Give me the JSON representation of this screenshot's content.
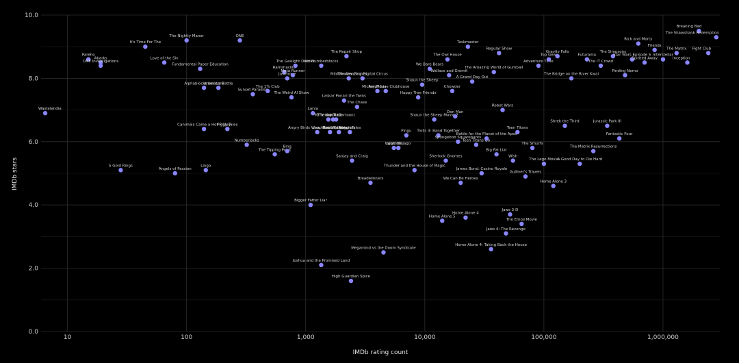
{
  "chart_data": {
    "type": "scatter",
    "xlabel": "IMDb rating count",
    "ylabel": "IMDb stars",
    "x_scale": "log",
    "xlim": [
      6,
      3000000
    ],
    "ylim": [
      0,
      10
    ],
    "grid": true,
    "x_ticks": [
      {
        "value": 10,
        "label": "10"
      },
      {
        "value": 100,
        "label": "100"
      },
      {
        "value": 1000,
        "label": "1,000"
      },
      {
        "value": 10000,
        "label": "10,000"
      },
      {
        "value": 100000,
        "label": "100,000"
      },
      {
        "value": 1000000,
        "label": "1,000,000"
      }
    ],
    "y_ticks": [
      {
        "value": 0,
        "label": "0.0"
      },
      {
        "value": 2,
        "label": "2.0"
      },
      {
        "value": 4,
        "label": "4.0"
      },
      {
        "value": 6,
        "label": "6.0"
      },
      {
        "value": 8,
        "label": "8.0"
      },
      {
        "value": 10,
        "label": "10.0"
      }
    ],
    "point_color": "#8a86ff",
    "points": [
      {
        "x": 6.5,
        "y": 6.9,
        "label": "Wastelandia"
      },
      {
        "x": 15,
        "y": 8.6,
        "label": "Pareho"
      },
      {
        "x": 19,
        "y": 8.5,
        "label": "Abarks"
      },
      {
        "x": 19,
        "y": 8.4,
        "label": "ONE Investigations"
      },
      {
        "x": 28,
        "y": 5.1,
        "label": "5 Gold Rings"
      },
      {
        "x": 45,
        "y": 9.0,
        "label": "It's Time For The"
      },
      {
        "x": 65,
        "y": 8.5,
        "label": "Love of the Sin"
      },
      {
        "x": 80,
        "y": 5.0,
        "label": "Angels of Passion"
      },
      {
        "x": 100,
        "y": 9.2,
        "label": "The Nightly Manor"
      },
      {
        "x": 130,
        "y": 8.3,
        "label": "Fundamental Paper Education"
      },
      {
        "x": 140,
        "y": 7.7,
        "label": "Alphablocks ber Lore"
      },
      {
        "x": 140,
        "y": 6.4,
        "label": "Canimals Came a Hot Friday"
      },
      {
        "x": 145,
        "y": 5.1,
        "label": "Lingo"
      },
      {
        "x": 185,
        "y": 7.7,
        "label": "Animatic Battle"
      },
      {
        "x": 220,
        "y": 6.4,
        "label": "Piggy Tales"
      },
      {
        "x": 280,
        "y": 9.2,
        "label": "ONE"
      },
      {
        "x": 320,
        "y": 5.9,
        "label": "Numberjacks"
      },
      {
        "x": 360,
        "y": 7.5,
        "label": "Sunset Paradise"
      },
      {
        "x": 480,
        "y": 7.6,
        "label": "The 1% Club"
      },
      {
        "x": 550,
        "y": 5.6,
        "label": "The Tipping Point"
      },
      {
        "x": 660,
        "y": 8.2,
        "label": "Ramshackle"
      },
      {
        "x": 700,
        "y": 5.7,
        "label": "Bing"
      },
      {
        "x": 700,
        "y": 8.0,
        "label": "Justmove"
      },
      {
        "x": 760,
        "y": 7.4,
        "label": "The Weird Al Show"
      },
      {
        "x": 780,
        "y": 8.1,
        "label": "Meta Runner"
      },
      {
        "x": 820,
        "y": 8.4,
        "label": "The Gaslight District"
      },
      {
        "x": 1100,
        "y": 4.0,
        "label": "Bigger Fatter Liar"
      },
      {
        "x": 1150,
        "y": 6.9,
        "label": "Larva"
      },
      {
        "x": 1250,
        "y": 6.3,
        "label": "Angry Birds Wow Wow Wubbzy"
      },
      {
        "x": 1350,
        "y": 2.1,
        "label": "Joshua and the Promised Land"
      },
      {
        "x": 1350,
        "y": 8.4,
        "label": "Kiri Numberblocks"
      },
      {
        "x": 1550,
        "y": 6.7,
        "label": "M/Timmy Time"
      },
      {
        "x": 1600,
        "y": 6.3,
        "label": "Leap Nexo Knights"
      },
      {
        "x": 1700,
        "y": 6.7,
        "label": "Nokotan"
      },
      {
        "x": 1800,
        "y": 6.7,
        "label": "The Lorax (Cartoon)"
      },
      {
        "x": 1900,
        "y": 6.3,
        "label": "Rabbids Invasion"
      },
      {
        "x": 2100,
        "y": 7.3,
        "label": "Laskar Ponari the Twins"
      },
      {
        "x": 2200,
        "y": 8.7,
        "label": "The Repair Shop"
      },
      {
        "x": 2300,
        "y": 8.0,
        "label": "Milo Murder Drones"
      },
      {
        "x": 2350,
        "y": 6.3,
        "label": "VeggieTales"
      },
      {
        "x": 2400,
        "y": 1.6,
        "label": "High Guardian Spice"
      },
      {
        "x": 2450,
        "y": 5.4,
        "label": "Sanjay and Craig"
      },
      {
        "x": 2700,
        "y": 7.1,
        "label": "The Chase"
      },
      {
        "x": 3000,
        "y": 8.0,
        "label": "The Amazing Digital Circus"
      },
      {
        "x": 3500,
        "y": 4.7,
        "label": "Breadwinners"
      },
      {
        "x": 4000,
        "y": 7.6,
        "label": "Amphibia"
      },
      {
        "x": 4500,
        "y": 2.5,
        "label": "Megamind vs the Doom Syndicate"
      },
      {
        "x": 4700,
        "y": 7.6,
        "label": "Mickey Mouse Clubhouse"
      },
      {
        "x": 5500,
        "y": 5.8,
        "label": "UglyDolls"
      },
      {
        "x": 6000,
        "y": 5.8,
        "label": "Lego Ninjago"
      },
      {
        "x": 7000,
        "y": 6.2,
        "label": "Pingu"
      },
      {
        "x": 8200,
        "y": 5.1,
        "label": "Thunder and the House of Magic"
      },
      {
        "x": 8800,
        "y": 7.4,
        "label": "Happy Tree Friends"
      },
      {
        "x": 9500,
        "y": 7.8,
        "label": "Shaun the Sheep"
      },
      {
        "x": 11000,
        "y": 8.3,
        "label": "We Bare Bears"
      },
      {
        "x": 12000,
        "y": 6.7,
        "label": "Shaun the Sheep Movie 2"
      },
      {
        "x": 13000,
        "y": 6.2,
        "label": "Trolls 3: Band Together"
      },
      {
        "x": 14000,
        "y": 3.5,
        "label": "Home Alone 5"
      },
      {
        "x": 15000,
        "y": 5.4,
        "label": "Sherlock Gnomes"
      },
      {
        "x": 15500,
        "y": 8.6,
        "label": "The Owl House"
      },
      {
        "x": 16000,
        "y": 8.1,
        "label": "Wallace and Gromit"
      },
      {
        "x": 17000,
        "y": 7.6,
        "label": "Chowder"
      },
      {
        "x": 18000,
        "y": 6.8,
        "label": "Don Man"
      },
      {
        "x": 19000,
        "y": 6.0,
        "label": "Spongebob Squarepants"
      },
      {
        "x": 20000,
        "y": 4.7,
        "label": "We Can Be Heroes"
      },
      {
        "x": 22000,
        "y": 3.6,
        "label": "Home Alone 4"
      },
      {
        "x": 23000,
        "y": 9.0,
        "label": "Taskmaster"
      },
      {
        "x": 25000,
        "y": 7.9,
        "label": "A Grand Day Out"
      },
      {
        "x": 27000,
        "y": 5.9,
        "label": "Teen Titans Go"
      },
      {
        "x": 30000,
        "y": 5.0,
        "label": "James Bond: Casino Royale"
      },
      {
        "x": 33000,
        "y": 6.1,
        "label": "Battle for the Planet of the Apes"
      },
      {
        "x": 36000,
        "y": 2.6,
        "label": "Home Alone 4: Taking Back the House"
      },
      {
        "x": 38000,
        "y": 8.2,
        "label": "The Amazing World of Gumball"
      },
      {
        "x": 40000,
        "y": 5.6,
        "label": "Big Fat Liar"
      },
      {
        "x": 42000,
        "y": 8.8,
        "label": "Regular Show"
      },
      {
        "x": 45000,
        "y": 7.0,
        "label": "Robot Wars"
      },
      {
        "x": 48000,
        "y": 3.1,
        "label": "Jaws 4: The Revenge"
      },
      {
        "x": 52000,
        "y": 3.7,
        "label": "Jaws 3-D"
      },
      {
        "x": 55000,
        "y": 5.4,
        "label": "Wish"
      },
      {
        "x": 60000,
        "y": 6.3,
        "label": "Teen Titans"
      },
      {
        "x": 65000,
        "y": 3.4,
        "label": "The Emoji Movie"
      },
      {
        "x": 70000,
        "y": 4.9,
        "label": "Gulliver's Travels"
      },
      {
        "x": 80000,
        "y": 5.8,
        "label": "The Smurfs"
      },
      {
        "x": 90000,
        "y": 8.4,
        "label": "Adventure Time"
      },
      {
        "x": 100000,
        "y": 5.3,
        "label": "The Lego Movie"
      },
      {
        "x": 110000,
        "y": 8.6,
        "label": "Top Gear"
      },
      {
        "x": 120000,
        "y": 4.6,
        "label": "Home Alone 3"
      },
      {
        "x": 130000,
        "y": 8.7,
        "label": "Gravity Falls"
      },
      {
        "x": 150000,
        "y": 6.5,
        "label": "Shrek the Third"
      },
      {
        "x": 170000,
        "y": 8.0,
        "label": "The Bridge on the River Kwai"
      },
      {
        "x": 200000,
        "y": 5.3,
        "label": "A Good Day to Die Hard"
      },
      {
        "x": 230000,
        "y": 8.6,
        "label": "Futurama"
      },
      {
        "x": 260000,
        "y": 5.7,
        "label": "The Matrix Resurrections"
      },
      {
        "x": 300000,
        "y": 8.4,
        "label": "The IT Crowd"
      },
      {
        "x": 340000,
        "y": 6.5,
        "label": "Jurassic Park III"
      },
      {
        "x": 380000,
        "y": 8.7,
        "label": "The Simpsons"
      },
      {
        "x": 430000,
        "y": 6.1,
        "label": "Fantastic Four"
      },
      {
        "x": 480000,
        "y": 8.1,
        "label": "Finding Nemo"
      },
      {
        "x": 550000,
        "y": 8.6,
        "label": "Star Wars Episode 5"
      },
      {
        "x": 620000,
        "y": 9.1,
        "label": "Rick and Morty"
      },
      {
        "x": 700000,
        "y": 8.5,
        "label": "Spirited Away"
      },
      {
        "x": 850000,
        "y": 8.9,
        "label": "Friends"
      },
      {
        "x": 1000000,
        "y": 8.6,
        "label": "Interstellar"
      },
      {
        "x": 1300000,
        "y": 8.8,
        "label": "The Matrix"
      },
      {
        "x": 1600000,
        "y": 8.5,
        "label": "Inception"
      },
      {
        "x": 2000000,
        "y": 9.5,
        "label": "Breaking Bad"
      },
      {
        "x": 2400000,
        "y": 8.8,
        "label": "Fight Club"
      },
      {
        "x": 2800000,
        "y": 9.3,
        "label": "The Shawshank Redemption"
      }
    ]
  }
}
